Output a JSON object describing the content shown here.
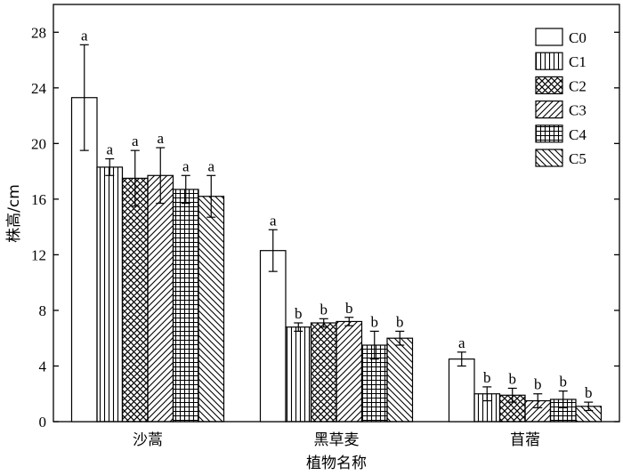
{
  "chart_data": {
    "type": "bar",
    "title": "",
    "xlabel": "植物名称",
    "ylabel": "株高/cm",
    "ylim": [
      0,
      30
    ],
    "yticks": [
      0,
      4,
      8,
      12,
      16,
      20,
      24,
      28
    ],
    "categories": [
      "沙蒿",
      "黑草麦",
      "苜蓿"
    ],
    "legend_position": "top-right",
    "grid": false,
    "series": [
      {
        "name": "C0",
        "pattern": "blank",
        "values": [
          23.3,
          12.3,
          4.5
        ],
        "errors": [
          3.8,
          1.5,
          0.5
        ],
        "labels": [
          "a",
          "a",
          "a"
        ]
      },
      {
        "name": "C1",
        "pattern": "vertical-lines",
        "values": [
          18.3,
          6.8,
          2.0
        ],
        "errors": [
          0.6,
          0.3,
          0.5
        ],
        "labels": [
          "a",
          "b",
          "b"
        ]
      },
      {
        "name": "C2",
        "pattern": "crosshatch",
        "values": [
          17.5,
          7.1,
          1.9
        ],
        "errors": [
          2.0,
          0.3,
          0.5
        ],
        "labels": [
          "a",
          "b",
          "b"
        ]
      },
      {
        "name": "C3",
        "pattern": "diagonal-up",
        "values": [
          17.7,
          7.2,
          1.5
        ],
        "errors": [
          2.0,
          0.3,
          0.5
        ],
        "labels": [
          "a",
          "b",
          "b"
        ]
      },
      {
        "name": "C4",
        "pattern": "grid",
        "values": [
          16.7,
          5.5,
          1.6
        ],
        "errors": [
          1.0,
          1.0,
          0.6
        ],
        "labels": [
          "a",
          "b",
          "b"
        ]
      },
      {
        "name": "C5",
        "pattern": "diagonal-down",
        "values": [
          16.2,
          6.0,
          1.1
        ],
        "errors": [
          1.5,
          0.5,
          0.3
        ],
        "labels": [
          "a",
          "b",
          "b"
        ]
      }
    ]
  }
}
